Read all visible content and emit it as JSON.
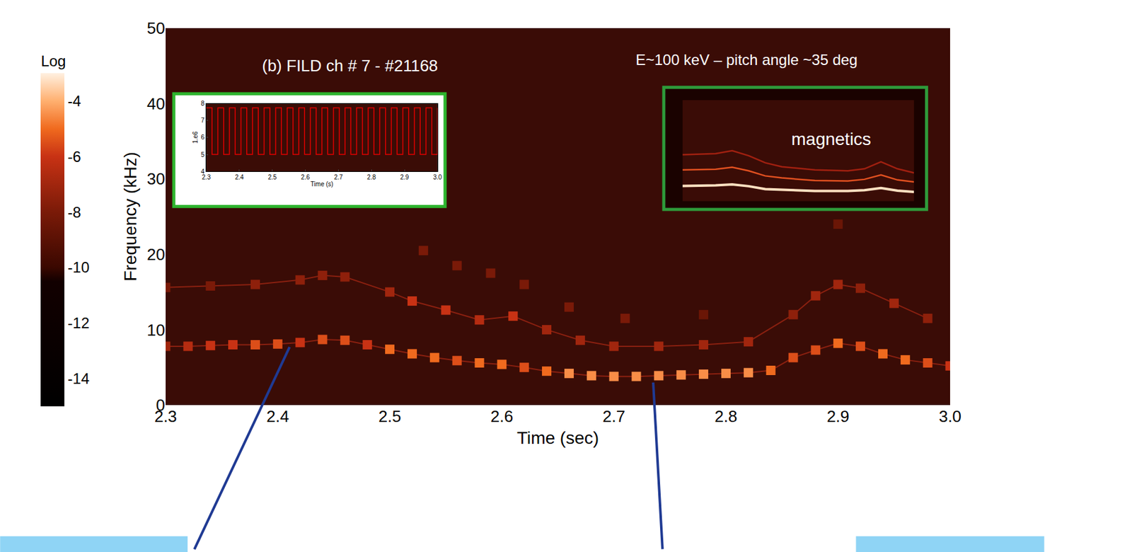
{
  "chart_data": [
    {
      "type": "scatter",
      "title": "(b) FILD ch # 7 - #21168",
      "annotations": [
        "E~100 keV – pitch angle ~35 deg"
      ],
      "x_label": "Time (sec)",
      "y_label": "Frequency (kHz)",
      "xlim": [
        2.3,
        3.0
      ],
      "ylim": [
        0,
        50
      ],
      "xticks": [
        2.3,
        2.4,
        2.5,
        2.6,
        2.7,
        2.8,
        2.9,
        {
          "value": 3.0,
          "label": "3.0"
        }
      ],
      "yticks": [
        0,
        10,
        20,
        30,
        40,
        50
      ],
      "grid": false,
      "marker": "square",
      "colorbar": {
        "title": "Log",
        "range": [
          -15,
          -3
        ],
        "ticks": [
          -4,
          -6,
          -8,
          -10,
          -12,
          -14
        ]
      },
      "series": [
        {
          "line_style": "solid",
          "x": [
            2.3,
            2.32,
            2.34,
            2.36,
            2.38,
            2.4,
            2.42,
            2.44,
            2.46,
            2.48,
            2.5,
            2.52,
            2.54,
            2.56,
            2.58,
            2.6,
            2.62,
            2.64,
            2.66,
            2.68,
            2.7,
            2.72,
            2.74,
            2.76,
            2.78,
            2.8,
            2.82,
            2.84,
            2.86,
            2.88,
            2.9,
            2.92,
            2.94,
            2.96,
            2.98,
            3.0
          ],
          "values": [
            7.8,
            7.8,
            7.9,
            8.0,
            8.0,
            8.1,
            8.3,
            8.7,
            8.6,
            8.0,
            7.4,
            6.8,
            6.3,
            5.9,
            5.6,
            5.4,
            5.0,
            4.5,
            4.2,
            3.9,
            3.8,
            3.8,
            3.9,
            4.0,
            4.1,
            4.2,
            4.3,
            4.6,
            6.3,
            7.3,
            8.2,
            7.8,
            6.8,
            6.0,
            5.6,
            5.2
          ],
          "level": [
            -7,
            -6.5,
            -6,
            -6,
            -5.5,
            -5.5,
            -6,
            -5.5,
            -5.5,
            -6,
            -5,
            -5,
            -5,
            -5.5,
            -5,
            -5,
            -5.5,
            -5,
            -4.5,
            -4.5,
            -4.5,
            -4.5,
            -4.5,
            -4.5,
            -4.5,
            -4.5,
            -4.5,
            -5,
            -5.5,
            -5.5,
            -5,
            -5.5,
            -5,
            -5,
            -5.5,
            -6
          ]
        },
        {
          "line_style": "solid",
          "x": [
            2.3,
            2.34,
            2.38,
            2.42,
            2.44,
            2.46,
            2.5,
            2.52,
            2.55,
            2.58,
            2.61,
            2.64,
            2.67,
            2.7,
            2.74,
            2.78,
            2.82,
            2.86,
            2.88,
            2.9,
            2.92,
            2.95,
            2.98
          ],
          "values": [
            15.6,
            15.8,
            16.0,
            16.6,
            17.2,
            17.0,
            15.0,
            13.8,
            12.6,
            11.3,
            11.8,
            10.0,
            8.6,
            7.8,
            7.8,
            8.0,
            8.4,
            12.0,
            14.5,
            16.0,
            15.5,
            13.5,
            11.5
          ],
          "level": [
            -8,
            -8,
            -7.5,
            -7.5,
            -7.5,
            -7.5,
            -7,
            -6,
            -6,
            -6.5,
            -6,
            -7,
            -7,
            -7,
            -7,
            -7,
            -7,
            -7.5,
            -7,
            -7,
            -7.5,
            -7,
            -7.5
          ]
        },
        {
          "line_style": "none",
          "x": [
            2.53,
            2.56,
            2.59,
            2.62,
            2.66,
            2.71,
            2.78,
            2.9
          ],
          "values": [
            20.5,
            18.5,
            17.5,
            16.0,
            13.0,
            11.5,
            12.0,
            24.0
          ],
          "level": [
            -8,
            -8,
            -8,
            -8,
            -8,
            -8,
            -8.5,
            -8.5
          ]
        }
      ]
    },
    {
      "type": "line",
      "x_label": "Time (s)",
      "y_label": "1.e6",
      "xlim": [
        2.3,
        3.0
      ],
      "ylim": [
        4,
        8
      ],
      "xticks": [
        2.3,
        2.4,
        2.5,
        2.6,
        2.7,
        2.8,
        2.9,
        {
          "value": 3.0,
          "label": "3.0"
        }
      ],
      "yticks": [
        4,
        5,
        6,
        7,
        8
      ],
      "grid": false,
      "series": [
        {
          "color": "#e00000",
          "line_style": "step",
          "x": [
            2.3,
            2.3175,
            2.335,
            2.3525,
            2.37,
            2.3875,
            2.405,
            2.4225,
            2.44,
            2.4575,
            2.475,
            2.4925,
            2.51,
            2.5275,
            2.545,
            2.5625,
            2.58,
            2.5975,
            2.615,
            2.6325,
            2.65,
            2.6675,
            2.685,
            2.7025,
            2.72,
            2.7375,
            2.755,
            2.7725,
            2.79,
            2.8075,
            2.825,
            2.8425,
            2.86,
            2.8775,
            2.895,
            2.9125,
            2.93,
            2.9475,
            2.965,
            2.9825,
            3.0
          ],
          "values": [
            7.75,
            5.0,
            7.75,
            5.0,
            7.75,
            5.0,
            7.75,
            5.0,
            7.75,
            5.0,
            7.75,
            5.0,
            7.75,
            5.0,
            7.75,
            5.0,
            7.75,
            5.0,
            7.75,
            5.0,
            7.75,
            5.0,
            7.75,
            5.0,
            7.75,
            5.0,
            7.75,
            5.0,
            7.75,
            5.0,
            7.75,
            5.0,
            7.75,
            5.0,
            7.75,
            5.0,
            7.75,
            5.0,
            7.75,
            5.0,
            7.75
          ]
        }
      ]
    },
    {
      "type": "line",
      "annotations": [
        "magnetics"
      ],
      "xlim": [
        2.3,
        3.0
      ],
      "ylim": [
        0,
        50
      ],
      "tick_labels": false,
      "grid": false,
      "series": [
        {
          "color": "#ffe0c0",
          "line_style": "solid",
          "x": [
            2.3,
            2.4,
            2.45,
            2.5,
            2.55,
            2.6,
            2.7,
            2.8,
            2.85,
            2.9,
            2.95,
            3.0
          ],
          "values": [
            7.5,
            7.8,
            8.3,
            7.4,
            6.0,
            5.6,
            5.0,
            5.0,
            5.4,
            6.5,
            5.2,
            4.6
          ]
        },
        {
          "color": "#e05020",
          "line_style": "solid",
          "x": [
            2.3,
            2.4,
            2.45,
            2.5,
            2.55,
            2.6,
            2.7,
            2.8,
            2.85,
            2.9,
            2.95,
            3.0
          ],
          "values": [
            15.5,
            15.8,
            16.8,
            15.0,
            12.5,
            11.5,
            10.2,
            10.0,
            10.8,
            13.0,
            10.5,
            9.5
          ]
        },
        {
          "color": "#a02010",
          "line_style": "solid",
          "x": [
            2.3,
            2.4,
            2.45,
            2.5,
            2.55,
            2.6,
            2.7,
            2.8,
            2.85,
            2.9,
            2.95,
            3.0
          ],
          "values": [
            23,
            23.5,
            25,
            22.5,
            19,
            17,
            15.5,
            15,
            16,
            19.5,
            16,
            14
          ]
        }
      ]
    }
  ]
}
